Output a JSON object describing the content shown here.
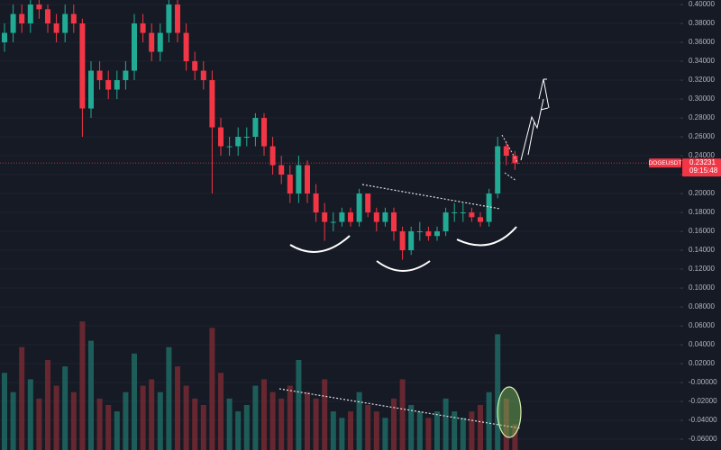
{
  "chart_data": {
    "type": "candlestick",
    "symbol": "DOGEUSDT",
    "last_price": 0.23231,
    "countdown": "09:15:48",
    "up_color": "#22ab94",
    "down_color": "#f23645",
    "volume_color": "#1f6e66",
    "volume_down_color": "#7a2a33",
    "grid": true,
    "ylim": [
      -0.0714,
      0.4048
    ],
    "y2lim": [
      0,
      350
    ],
    "yticks": [
      {
        "value": 0.4,
        "label": "0.40000"
      },
      {
        "value": 0.38,
        "label": "0.38000"
      },
      {
        "value": 0.36,
        "label": "0.36000"
      },
      {
        "value": 0.34,
        "label": "0.34000"
      },
      {
        "value": 0.32,
        "label": "0.32000"
      },
      {
        "value": 0.3,
        "label": "0.30000"
      },
      {
        "value": 0.28,
        "label": "0.28000"
      },
      {
        "value": 0.26,
        "label": "0.26000"
      },
      {
        "value": 0.24,
        "label": "0.24000"
      },
      {
        "value": 0.22,
        "label": "0.22000"
      },
      {
        "value": 0.2,
        "label": "0.20000"
      },
      {
        "value": 0.18,
        "label": "0.18000"
      },
      {
        "value": 0.16,
        "label": "0.16000"
      },
      {
        "value": 0.14,
        "label": "0.14000"
      },
      {
        "value": 0.12,
        "label": "0.12000"
      },
      {
        "value": 0.1,
        "label": "0.10000"
      },
      {
        "value": 0.08,
        "label": "0.08000"
      },
      {
        "value": 0.06,
        "label": "0.06000"
      },
      {
        "value": 0.04,
        "label": "0.04000"
      },
      {
        "value": 0.02,
        "label": "0.02000"
      },
      {
        "value": 0,
        "label": "-0.00000"
      },
      {
        "value": -0.02,
        "label": "-0.02000"
      },
      {
        "value": -0.04,
        "label": "-0.04000"
      },
      {
        "value": -0.06,
        "label": "-0.06000"
      }
    ],
    "candles": [
      [
        0.36,
        0.38,
        0.35,
        0.37
      ],
      [
        0.37,
        0.4,
        0.36,
        0.39
      ],
      [
        0.39,
        0.4,
        0.37,
        0.38
      ],
      [
        0.38,
        0.41,
        0.37,
        0.4
      ],
      [
        0.4,
        0.41,
        0.385,
        0.395
      ],
      [
        0.395,
        0.4,
        0.37,
        0.38
      ],
      [
        0.38,
        0.39,
        0.36,
        0.37
      ],
      [
        0.37,
        0.4,
        0.36,
        0.39
      ],
      [
        0.39,
        0.4,
        0.37,
        0.38
      ],
      [
        0.38,
        0.385,
        0.26,
        0.29
      ],
      [
        0.29,
        0.34,
        0.28,
        0.33
      ],
      [
        0.33,
        0.34,
        0.31,
        0.32
      ],
      [
        0.32,
        0.33,
        0.3,
        0.31
      ],
      [
        0.31,
        0.33,
        0.3,
        0.32
      ],
      [
        0.32,
        0.34,
        0.31,
        0.33
      ],
      [
        0.33,
        0.39,
        0.32,
        0.38
      ],
      [
        0.38,
        0.39,
        0.36,
        0.37
      ],
      [
        0.37,
        0.38,
        0.34,
        0.35
      ],
      [
        0.35,
        0.38,
        0.34,
        0.37
      ],
      [
        0.37,
        0.41,
        0.36,
        0.4
      ],
      [
        0.4,
        0.405,
        0.36,
        0.37
      ],
      [
        0.37,
        0.38,
        0.33,
        0.34
      ],
      [
        0.34,
        0.35,
        0.32,
        0.33
      ],
      [
        0.33,
        0.34,
        0.31,
        0.32
      ],
      [
        0.32,
        0.33,
        0.2,
        0.27
      ],
      [
        0.27,
        0.28,
        0.24,
        0.25
      ],
      [
        0.25,
        0.26,
        0.24,
        0.25
      ],
      [
        0.25,
        0.27,
        0.24,
        0.26
      ],
      [
        0.26,
        0.27,
        0.25,
        0.26
      ],
      [
        0.26,
        0.285,
        0.25,
        0.28
      ],
      [
        0.28,
        0.285,
        0.24,
        0.25
      ],
      [
        0.25,
        0.26,
        0.22,
        0.23
      ],
      [
        0.23,
        0.24,
        0.21,
        0.22
      ],
      [
        0.22,
        0.23,
        0.19,
        0.2
      ],
      [
        0.2,
        0.24,
        0.19,
        0.23
      ],
      [
        0.23,
        0.235,
        0.19,
        0.2
      ],
      [
        0.2,
        0.21,
        0.17,
        0.18
      ],
      [
        0.18,
        0.19,
        0.15,
        0.17
      ],
      [
        0.17,
        0.18,
        0.16,
        0.17
      ],
      [
        0.17,
        0.185,
        0.165,
        0.18
      ],
      [
        0.18,
        0.185,
        0.165,
        0.17
      ],
      [
        0.17,
        0.205,
        0.165,
        0.2
      ],
      [
        0.2,
        0.2,
        0.175,
        0.18
      ],
      [
        0.18,
        0.185,
        0.16,
        0.17
      ],
      [
        0.17,
        0.185,
        0.165,
        0.18
      ],
      [
        0.18,
        0.185,
        0.15,
        0.16
      ],
      [
        0.16,
        0.165,
        0.13,
        0.14
      ],
      [
        0.14,
        0.165,
        0.135,
        0.16
      ],
      [
        0.16,
        0.17,
        0.15,
        0.16
      ],
      [
        0.16,
        0.165,
        0.15,
        0.155
      ],
      [
        0.155,
        0.165,
        0.15,
        0.16
      ],
      [
        0.16,
        0.185,
        0.155,
        0.18
      ],
      [
        0.18,
        0.19,
        0.17,
        0.18
      ],
      [
        0.18,
        0.19,
        0.17,
        0.18
      ],
      [
        0.18,
        0.185,
        0.17,
        0.175
      ],
      [
        0.175,
        0.18,
        0.165,
        0.17
      ],
      [
        0.17,
        0.205,
        0.165,
        0.2
      ],
      [
        0.2,
        0.26,
        0.195,
        0.25
      ],
      [
        0.25,
        0.255,
        0.23,
        0.24
      ],
      [
        0.24,
        0.245,
        0.225,
        0.232
      ]
    ],
    "volume": [
      60,
      45,
      80,
      55,
      40,
      70,
      50,
      65,
      45,
      100,
      85,
      40,
      35,
      30,
      45,
      75,
      50,
      55,
      45,
      80,
      65,
      50,
      40,
      35,
      95,
      60,
      40,
      30,
      35,
      50,
      55,
      45,
      40,
      50,
      70,
      45,
      40,
      55,
      30,
      25,
      30,
      45,
      35,
      30,
      25,
      40,
      55,
      35,
      30,
      25,
      30,
      40,
      30,
      25,
      30,
      35,
      45,
      90,
      40,
      20
    ]
  }
}
